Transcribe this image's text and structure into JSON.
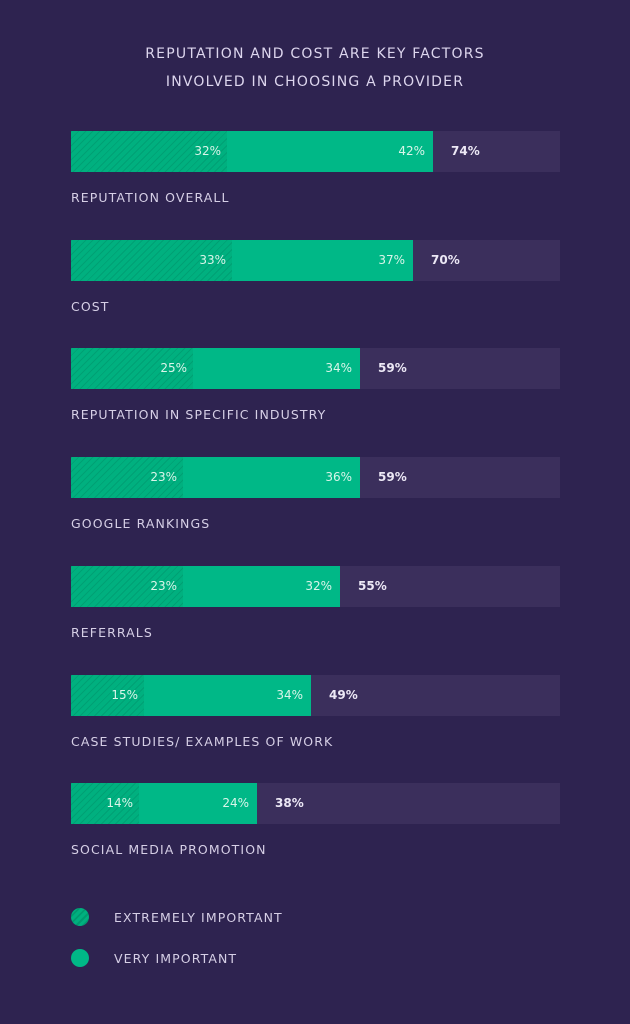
{
  "title_line1": "REPUTATION AND COST ARE KEY FACTORS",
  "title_line2": "INVOLVED IN CHOOSING A PROVIDER",
  "colors": {
    "background": "#2e2350",
    "track": "#3b2f5c",
    "extremely": "#00b07f",
    "very": "#00b887"
  },
  "rows": [
    {
      "label": "REPUTATION OVERALL",
      "extremely": "32%",
      "very": "42%",
      "total": "74%"
    },
    {
      "label": "COST",
      "extremely": "33%",
      "very": "37%",
      "total": "70%"
    },
    {
      "label": "REPUTATION IN SPECIFIC INDUSTRY",
      "extremely": "25%",
      "very": "34%",
      "total": "59%"
    },
    {
      "label": "GOOGLE RANKINGS",
      "extremely": "23%",
      "very": "36%",
      "total": "59%"
    },
    {
      "label": "REFERRALS",
      "extremely": "23%",
      "very": "32%",
      "total": "55%"
    },
    {
      "label": "CASE STUDIES/ EXAMPLES OF WORK",
      "extremely": "15%",
      "very": "34%",
      "total": "49%"
    },
    {
      "label": "SOCIAL MEDIA PROMOTION",
      "extremely": "14%",
      "very": "24%",
      "total": "38%"
    }
  ],
  "legend": [
    {
      "label": "EXTREMELY IMPORTANT"
    },
    {
      "label": "VERY IMPORTANT"
    }
  ],
  "chart_data": {
    "type": "bar",
    "orientation": "horizontal",
    "stacked": true,
    "title": "Reputation and cost are key factors involved in choosing a provider",
    "categories": [
      "Reputation overall",
      "Cost",
      "Reputation in specific industry",
      "Google rankings",
      "Referrals",
      "Case studies/ examples of work",
      "Social media promotion"
    ],
    "series": [
      {
        "name": "Extremely important",
        "values": [
          32,
          33,
          25,
          23,
          23,
          15,
          14
        ]
      },
      {
        "name": "Very important",
        "values": [
          42,
          37,
          34,
          36,
          32,
          34,
          24
        ]
      }
    ],
    "totals": [
      74,
      70,
      59,
      59,
      55,
      49,
      38
    ],
    "xlim": [
      0,
      100
    ],
    "unit": "%",
    "grid": false,
    "legend_position": "bottom"
  }
}
